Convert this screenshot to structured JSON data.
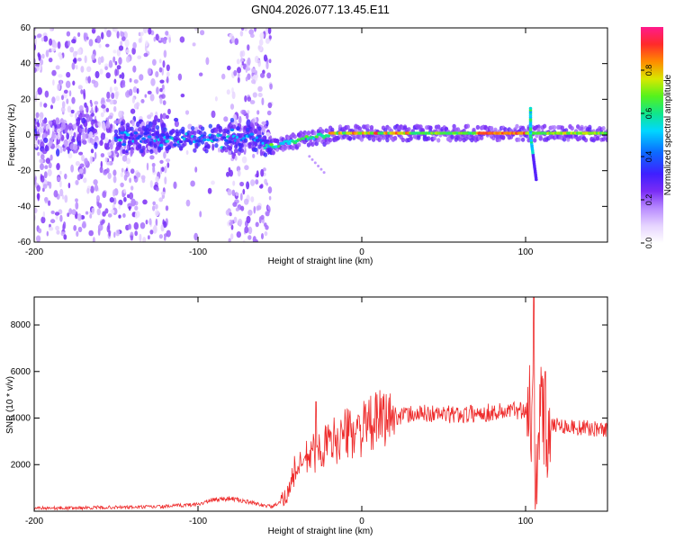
{
  "figure_title": "GN04.2026.077.13.45.E11",
  "colors": {
    "snr_line": "#ee2a2a",
    "axis": "#000000",
    "background": "#ffffff",
    "colormap_stops": [
      "#ffffff",
      "#e6d4ff",
      "#b98cff",
      "#7a2cf5",
      "#3f1fff",
      "#0b6bff",
      "#00d8ff",
      "#11e68a",
      "#55f21c",
      "#d8e800",
      "#ff8a00",
      "#ff2a2a",
      "#ff1a8c"
    ]
  },
  "chart_data": [
    {
      "type": "heatmap",
      "title": "",
      "xlabel": "Height of straight line (km)",
      "ylabel": "Frequency (Hz)",
      "xlim": [
        -200,
        150
      ],
      "ylim": [
        -60,
        60
      ],
      "xticks": [
        -200,
        -100,
        0,
        100
      ],
      "yticks": [
        -60,
        -40,
        -20,
        0,
        20,
        40,
        60
      ],
      "colorbar": {
        "label": "Normalized spectral amplitude",
        "range": [
          0,
          1
        ],
        "ticks": [
          0.0,
          0.2,
          0.4,
          0.6,
          0.8
        ]
      },
      "features": {
        "noise_region_x": [
          -200,
          -55
        ],
        "clear_gap_x": [
          -118,
          -82
        ],
        "ridge_start_km": -55,
        "ridge_frequency_hz": 1,
        "peak_amplitude_km": [
          -20,
          100
        ],
        "spike_km": 103,
        "spike_frequency_range_hz": [
          -25,
          15
        ]
      }
    },
    {
      "type": "line",
      "title": "",
      "xlabel": "Height of straight line (km)",
      "ylabel": "SNR (10 * v/v)",
      "xlim": [
        -200,
        150
      ],
      "ylim": [
        0,
        9200
      ],
      "xticks": [
        -200,
        -100,
        0,
        100
      ],
      "yticks": [
        2000,
        4000,
        6000,
        8000
      ],
      "series": [
        {
          "name": "SNR",
          "x": [
            -200,
            -180,
            -160,
            -140,
            -120,
            -100,
            -90,
            -80,
            -70,
            -60,
            -55,
            -50,
            -45,
            -42,
            -40,
            -38,
            -35,
            -30,
            -25,
            -20,
            -15,
            -10,
            -5,
            0,
            5,
            10,
            15,
            20,
            30,
            40,
            50,
            60,
            70,
            80,
            90,
            95,
            100,
            103,
            105,
            106,
            107,
            108,
            110,
            112,
            115,
            120,
            130,
            140,
            150
          ],
          "values": [
            150,
            130,
            160,
            170,
            200,
            300,
            500,
            550,
            400,
            250,
            200,
            350,
            800,
            1500,
            2000,
            1800,
            2200,
            2500,
            2700,
            2900,
            3100,
            3300,
            3450,
            3500,
            3700,
            3900,
            4000,
            4100,
            4150,
            4200,
            4150,
            4150,
            4200,
            4250,
            4300,
            4350,
            4400,
            4700,
            3600,
            500,
            4800,
            2800,
            4500,
            3000,
            3800,
            3700,
            3600,
            3550,
            3500
          ]
        }
      ],
      "spikes": [
        {
          "x": -28,
          "y": 4700
        },
        {
          "x": 105,
          "y": 9200
        },
        {
          "x": 107,
          "y": 300
        },
        {
          "x": 112,
          "y": 6000
        }
      ]
    }
  ]
}
